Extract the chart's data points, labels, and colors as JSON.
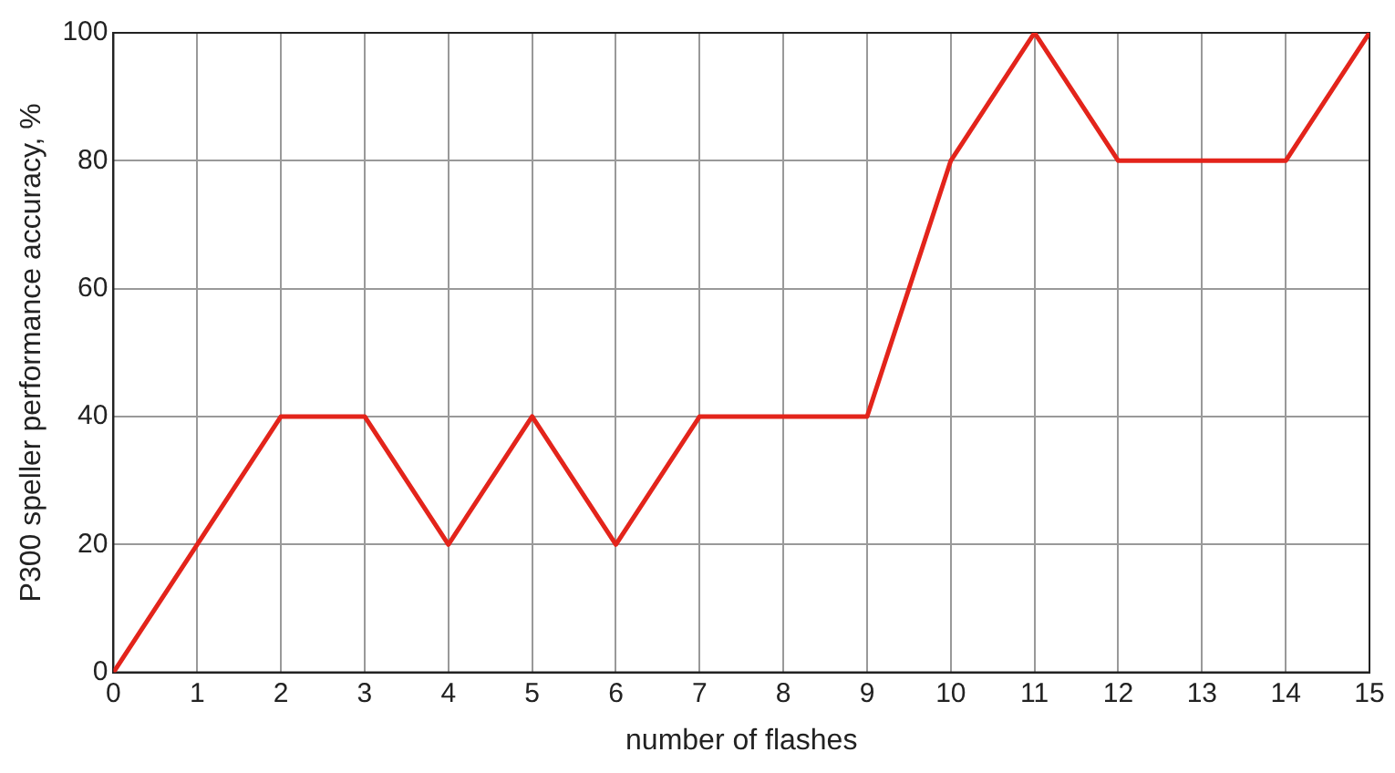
{
  "chart_data": {
    "type": "line",
    "xlabel": "number of flashes",
    "ylabel": "P300 speller performance accuracy, %",
    "x": [
      0,
      1,
      2,
      3,
      4,
      5,
      6,
      7,
      8,
      9,
      10,
      11,
      12,
      13,
      14,
      15
    ],
    "series": [
      {
        "color": "#e3241b",
        "values": [
          0,
          20,
          40,
          40,
          20,
          40,
          20,
          40,
          40,
          40,
          80,
          100,
          80,
          80,
          80,
          100
        ]
      }
    ],
    "xlim": [
      0,
      15
    ],
    "xticks": [
      0,
      1,
      2,
      3,
      4,
      5,
      6,
      7,
      8,
      9,
      10,
      11,
      12,
      13,
      14,
      15
    ],
    "ylim": [
      0,
      100
    ],
    "yticks": [
      0,
      20,
      40,
      60,
      80,
      100
    ],
    "grid": true,
    "marker": "none",
    "line_style": "solid",
    "legend": false
  }
}
